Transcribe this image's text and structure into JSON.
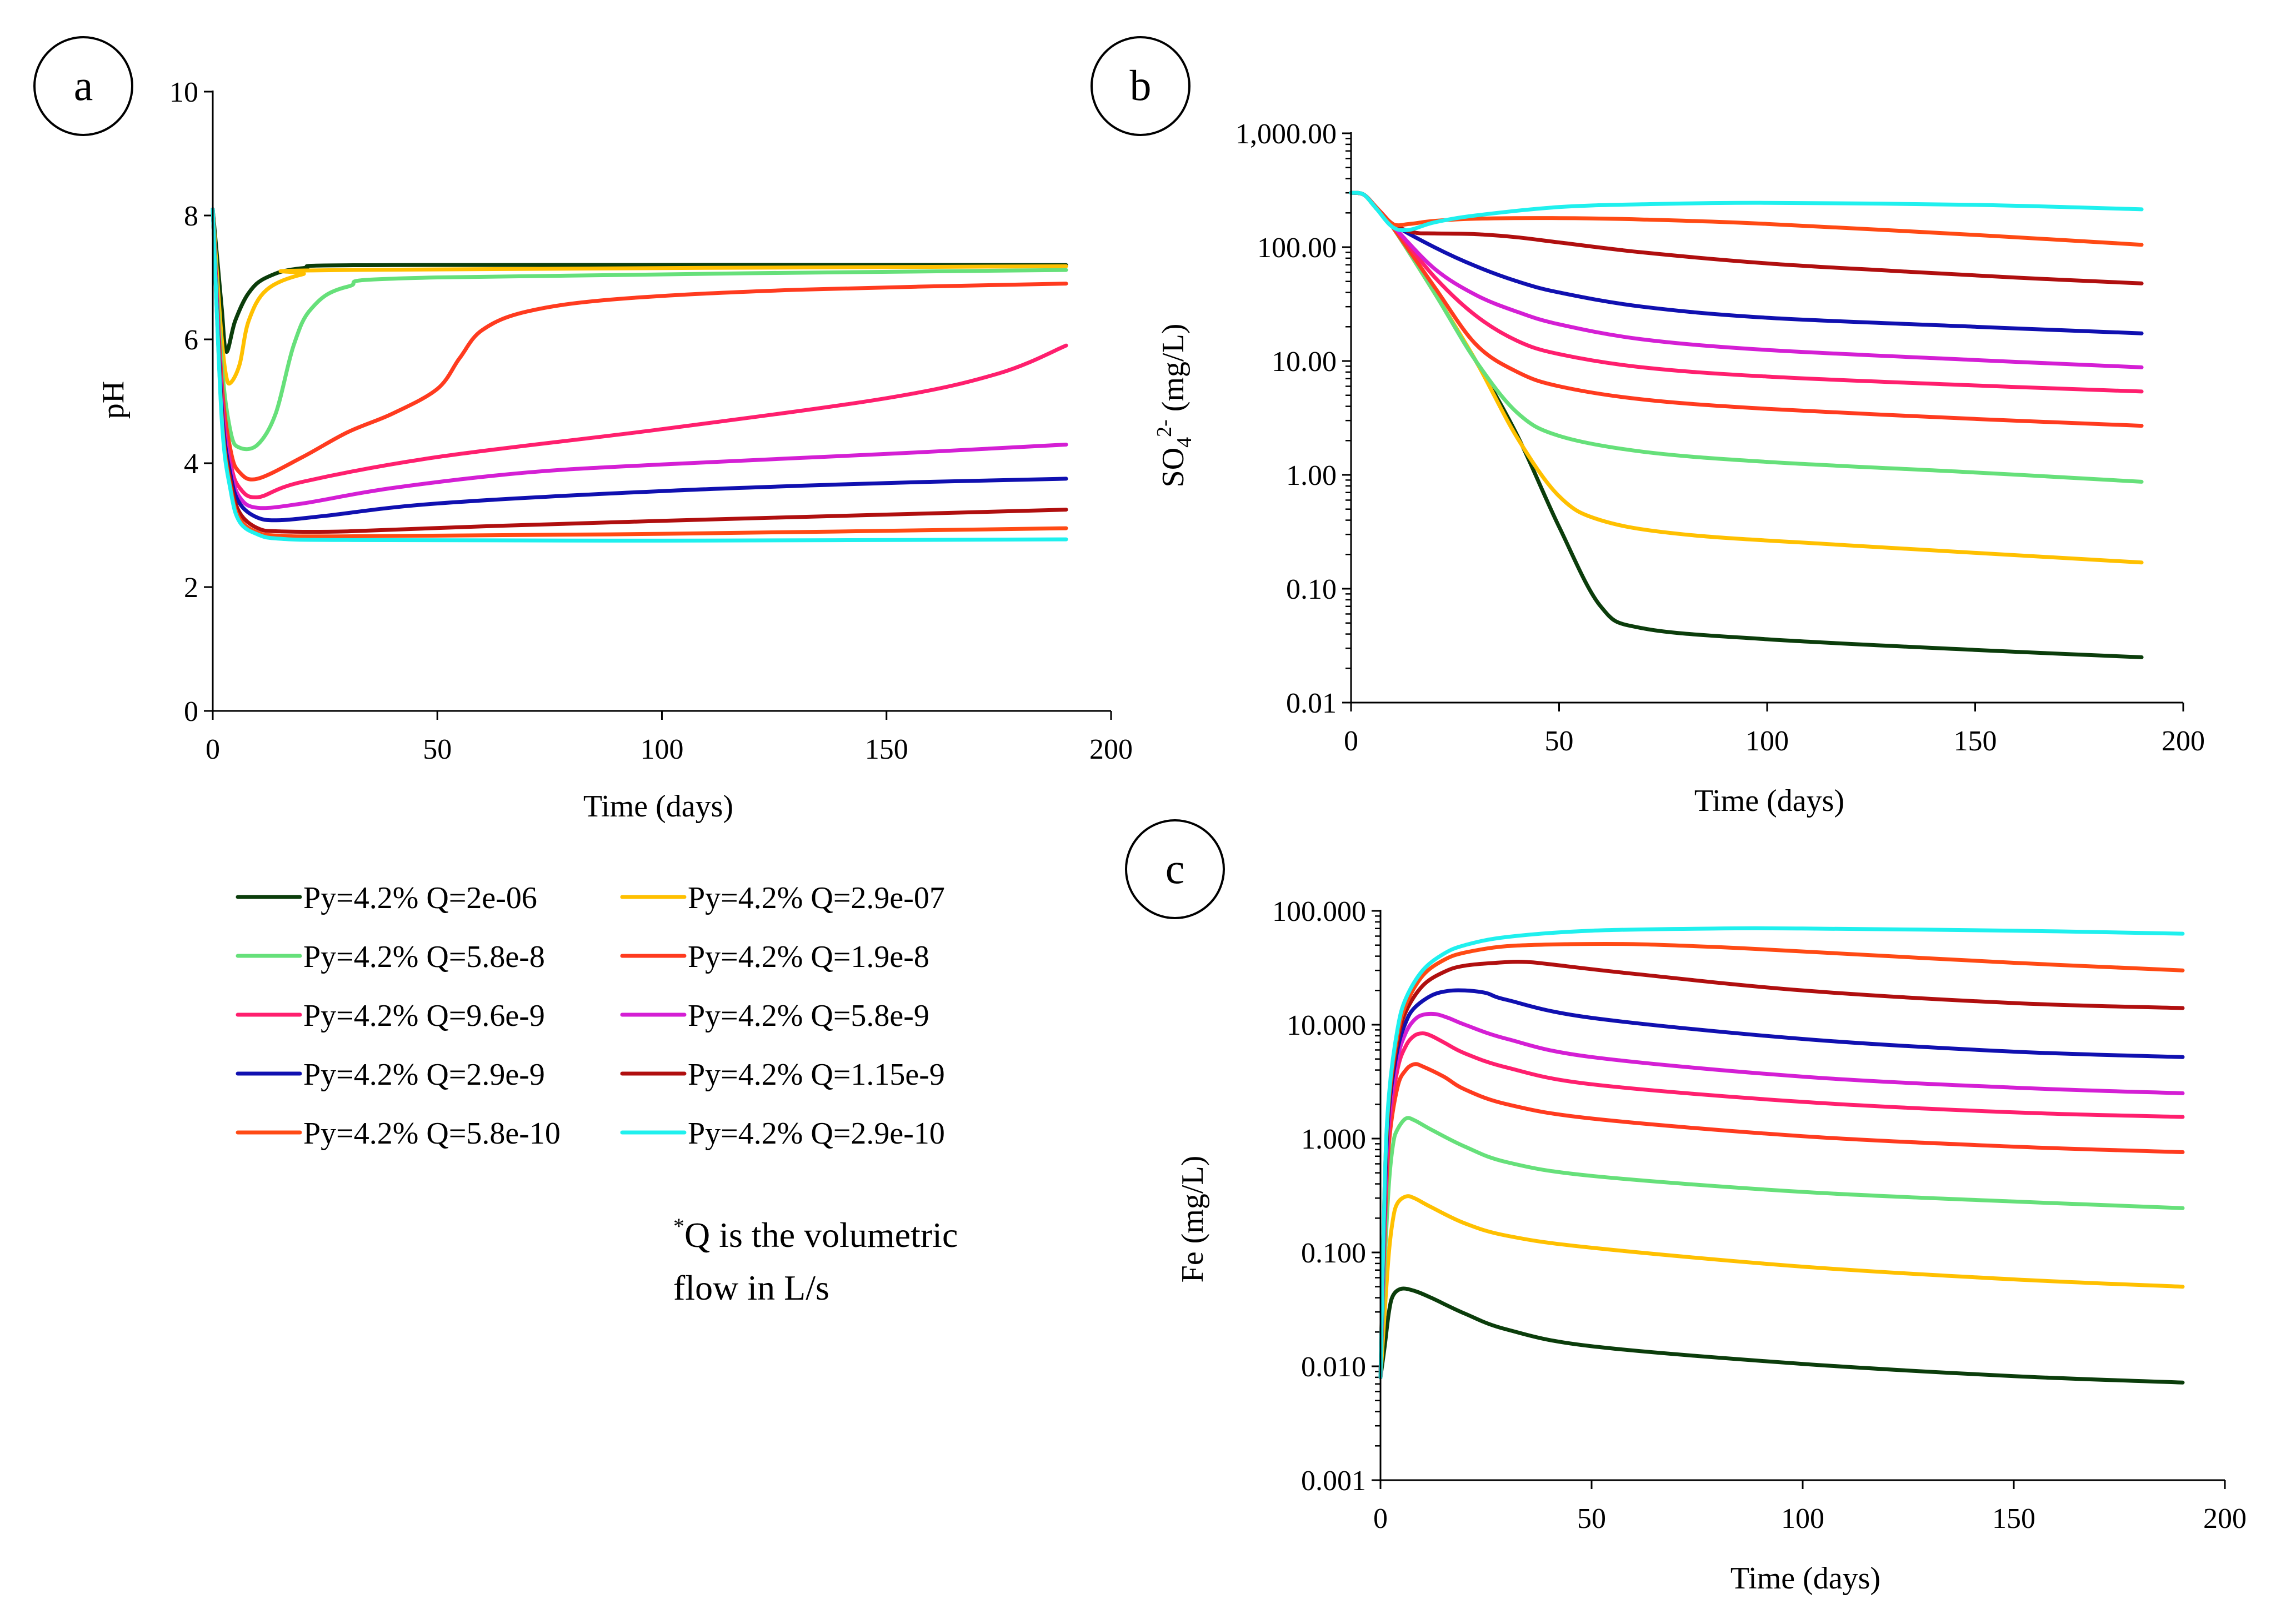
{
  "legend": {
    "note_sup": "*",
    "note_line1": "Q is the volumetric",
    "note_line2": "flow in L/s"
  },
  "series_styles": [
    {
      "name": "Py=4.2% Q=2e-06",
      "color": "#0b3d0b"
    },
    {
      "name": "Py=4.2% Q=2.9e-07",
      "color": "#ffc000"
    },
    {
      "name": "Py=4.2% Q=5.8e-8",
      "color": "#66e07a"
    },
    {
      "name": "Py=4.2% Q=1.9e-8",
      "color": "#ff3b1f"
    },
    {
      "name": "Py=4.2% Q=9.6e-9",
      "color": "#ff1f6e"
    },
    {
      "name": "Py=4.2% Q=5.8e-9",
      "color": "#d41fd4"
    },
    {
      "name": "Py=4.2% Q=2.9e-9",
      "color": "#1010b0"
    },
    {
      "name": "Py=4.2% Q=1.15e-9",
      "color": "#b00f0f"
    },
    {
      "name": "Py=4.2% Q=5.8e-10",
      "color": "#ff4a14"
    },
    {
      "name": "Py=4.2% Q=2.9e-10",
      "color": "#1ff0ee"
    }
  ],
  "chart_data": [
    {
      "panel": "a",
      "type": "line",
      "xlabel": "Time (days)",
      "ylabel": "pH",
      "yscale": "linear",
      "xlim": [
        0,
        200
      ],
      "ylim": [
        0,
        10
      ],
      "xticks": [
        0,
        50,
        100,
        150,
        200
      ],
      "xtick_labels": [
        "0",
        "50",
        "100",
        "150",
        "200"
      ],
      "yticks": [
        0,
        2,
        4,
        6,
        8,
        10
      ],
      "ytick_labels": [
        "0",
        "2",
        "4",
        "6",
        "8",
        "10"
      ],
      "series": [
        {
          "name": "Py=4.2% Q=2e-06",
          "x": [
            0,
            1,
            2,
            3,
            5,
            8,
            12,
            20,
            40,
            190
          ],
          "y": [
            8.1,
            7.3,
            6.5,
            5.8,
            6.3,
            6.75,
            7.0,
            7.15,
            7.2,
            7.2
          ]
        },
        {
          "name": "Py=4.2% Q=2.9e-07",
          "x": [
            0,
            1,
            2,
            3,
            4,
            6,
            8,
            12,
            20,
            30,
            190
          ],
          "y": [
            8.1,
            7.0,
            6.0,
            5.4,
            5.3,
            5.6,
            6.3,
            6.8,
            7.05,
            7.12,
            7.18
          ]
        },
        {
          "name": "Py=4.2% Q=5.8e-8",
          "x": [
            0,
            2,
            4,
            6,
            10,
            14,
            18,
            22,
            30,
            50,
            190
          ],
          "y": [
            8.1,
            5.6,
            4.5,
            4.25,
            4.3,
            4.8,
            5.9,
            6.5,
            6.85,
            7.0,
            7.12
          ]
        },
        {
          "name": "Py=4.2% Q=1.9e-8",
          "x": [
            0,
            2,
            4,
            6,
            10,
            20,
            30,
            40,
            50,
            55,
            60,
            70,
            90,
            130,
            190
          ],
          "y": [
            8.1,
            5.3,
            4.2,
            3.85,
            3.75,
            4.1,
            4.5,
            4.8,
            5.2,
            5.7,
            6.15,
            6.45,
            6.65,
            6.8,
            6.9
          ]
        },
        {
          "name": "Py=4.2% Q=9.6e-9",
          "x": [
            0,
            2,
            4,
            6,
            10,
            20,
            50,
            100,
            150,
            175,
            190
          ],
          "y": [
            8.1,
            5.1,
            4.0,
            3.6,
            3.45,
            3.7,
            4.1,
            4.55,
            5.05,
            5.45,
            5.9
          ]
        },
        {
          "name": "Py=4.2% Q=5.8e-9",
          "x": [
            0,
            2,
            4,
            6,
            10,
            20,
            40,
            70,
            100,
            150,
            190
          ],
          "y": [
            8.1,
            5.0,
            3.9,
            3.45,
            3.28,
            3.35,
            3.6,
            3.85,
            3.98,
            4.15,
            4.3
          ]
        },
        {
          "name": "Py=4.2% Q=2.9e-9",
          "x": [
            0,
            2,
            4,
            6,
            10,
            15,
            25,
            50,
            100,
            150,
            190
          ],
          "y": [
            8.1,
            4.9,
            3.8,
            3.35,
            3.12,
            3.08,
            3.15,
            3.35,
            3.55,
            3.68,
            3.75
          ]
        },
        {
          "name": "Py=4.2% Q=1.15e-9",
          "x": [
            0,
            2,
            4,
            6,
            10,
            15,
            30,
            60,
            100,
            150,
            190
          ],
          "y": [
            8.1,
            4.8,
            3.7,
            3.2,
            2.95,
            2.9,
            2.9,
            2.98,
            3.07,
            3.17,
            3.25
          ]
        },
        {
          "name": "Py=4.2% Q=5.8e-10",
          "x": [
            0,
            2,
            4,
            6,
            10,
            15,
            30,
            100,
            190
          ],
          "y": [
            8.1,
            4.75,
            3.6,
            3.1,
            2.88,
            2.83,
            2.82,
            2.86,
            2.95
          ]
        },
        {
          "name": "Py=4.2% Q=2.9e-10",
          "x": [
            0,
            2,
            4,
            6,
            10,
            15,
            30,
            100,
            190
          ],
          "y": [
            8.1,
            4.7,
            3.55,
            3.05,
            2.85,
            2.78,
            2.76,
            2.75,
            2.77
          ]
        }
      ]
    },
    {
      "panel": "b",
      "type": "line",
      "xlabel": "Time (days)",
      "ylabel_main": "SO",
      "ylabel_sub": "4",
      "ylabel_sup": "2-",
      "ylabel_rest": " (mg/L)",
      "yscale": "log",
      "xlim": [
        0,
        200
      ],
      "ylim": [
        0.01,
        1000
      ],
      "xticks": [
        0,
        50,
        100,
        150,
        200
      ],
      "xtick_labels": [
        "0",
        "50",
        "100",
        "150",
        "200"
      ],
      "yticks": [
        0.01,
        0.1,
        1,
        10,
        100,
        1000
      ],
      "ytick_labels": [
        "0.01",
        "0.10",
        "1.00",
        "10.00",
        "100.00",
        "1,000.00"
      ],
      "series": [
        {
          "name": "Py=4.2% Q=2e-06",
          "x": [
            0,
            3,
            6,
            10,
            20,
            30,
            40,
            50,
            60,
            70,
            100,
            150,
            190
          ],
          "y": [
            300,
            290,
            220,
            150,
            40,
            10,
            2.2,
            0.35,
            0.07,
            0.045,
            0.036,
            0.029,
            0.025
          ]
        },
        {
          "name": "Py=4.2% Q=2.9e-07",
          "x": [
            0,
            3,
            6,
            10,
            20,
            30,
            40,
            50,
            60,
            80,
            120,
            190
          ],
          "y": [
            300,
            290,
            220,
            150,
            40,
            10,
            2.1,
            0.65,
            0.4,
            0.3,
            0.24,
            0.17
          ]
        },
        {
          "name": "Py=4.2% Q=5.8e-8",
          "x": [
            0,
            3,
            6,
            10,
            20,
            30,
            40,
            50,
            70,
            100,
            150,
            190
          ],
          "y": [
            300,
            290,
            220,
            150,
            40,
            10,
            3.5,
            2.2,
            1.6,
            1.3,
            1.05,
            0.87
          ]
        },
        {
          "name": "Py=4.2% Q=1.9e-8",
          "x": [
            0,
            3,
            6,
            10,
            20,
            30,
            40,
            50,
            70,
            100,
            150,
            190
          ],
          "y": [
            300,
            290,
            225,
            150,
            45,
            14,
            8.0,
            6.0,
            4.6,
            3.8,
            3.1,
            2.7
          ]
        },
        {
          "name": "Py=4.2% Q=9.6e-9",
          "x": [
            0,
            3,
            6,
            10,
            20,
            30,
            40,
            50,
            70,
            100,
            150,
            190
          ],
          "y": [
            300,
            290,
            225,
            155,
            55,
            25,
            15.0,
            11.5,
            8.8,
            7.3,
            6.1,
            5.4
          ]
        },
        {
          "name": "Py=4.2% Q=5.8e-9",
          "x": [
            0,
            3,
            6,
            10,
            20,
            30,
            40,
            50,
            70,
            100,
            150,
            190
          ],
          "y": [
            300,
            290,
            225,
            155,
            65,
            38,
            27,
            21,
            15.5,
            12.5,
            10.2,
            8.8
          ]
        },
        {
          "name": "Py=4.2% Q=2.9e-9",
          "x": [
            0,
            3,
            6,
            10,
            20,
            30,
            40,
            50,
            70,
            100,
            150,
            190
          ],
          "y": [
            300,
            290,
            225,
            160,
            100,
            68,
            50,
            40,
            30,
            24,
            20,
            17.5
          ]
        },
        {
          "name": "Py=4.2% Q=1.15e-9",
          "x": [
            0,
            3,
            6,
            10,
            15,
            20,
            30,
            40,
            50,
            70,
            100,
            130,
            160,
            190
          ],
          "y": [
            300,
            290,
            225,
            160,
            135,
            132,
            130,
            122,
            110,
            90,
            72,
            62,
            54,
            48
          ]
        },
        {
          "name": "Py=4.2% Q=5.8e-10",
          "x": [
            0,
            3,
            6,
            10,
            14,
            20,
            30,
            50,
            70,
            100,
            150,
            190
          ],
          "y": [
            300,
            290,
            225,
            160,
            160,
            170,
            178,
            180,
            175,
            160,
            128,
            105
          ]
        },
        {
          "name": "Py=4.2% Q=2.9e-10",
          "x": [
            0,
            3,
            6,
            10,
            14,
            20,
            30,
            50,
            70,
            100,
            150,
            190
          ],
          "y": [
            300,
            290,
            220,
            150,
            142,
            165,
            190,
            225,
            238,
            245,
            235,
            215
          ]
        }
      ]
    },
    {
      "panel": "c",
      "type": "line",
      "xlabel": "Time (days)",
      "ylabel": "Fe (mg/L)",
      "yscale": "log",
      "xlim": [
        0,
        200
      ],
      "ylim": [
        0.001,
        100
      ],
      "xticks": [
        0,
        50,
        100,
        150,
        200
      ],
      "xtick_labels": [
        "0",
        "50",
        "100",
        "150",
        "200"
      ],
      "yticks": [
        0.001,
        0.01,
        0.1,
        1,
        10,
        100
      ],
      "ytick_labels": [
        "0.001",
        "0.010",
        "0.100",
        "1.000",
        "10.000",
        "100.000"
      ],
      "series": [
        {
          "name": "Py=4.2% Q=2e-06",
          "x": [
            0,
            1,
            2,
            3,
            5,
            8,
            12,
            20,
            30,
            50,
            100,
            150,
            190
          ],
          "y": [
            0.008,
            0.015,
            0.03,
            0.042,
            0.048,
            0.046,
            0.04,
            0.029,
            0.021,
            0.015,
            0.0105,
            0.0082,
            0.0072
          ]
        },
        {
          "name": "Py=4.2% Q=2.9e-07",
          "x": [
            0,
            1,
            2,
            3,
            4,
            6,
            8,
            12,
            20,
            30,
            50,
            100,
            150,
            190
          ],
          "y": [
            0.008,
            0.03,
            0.1,
            0.2,
            0.27,
            0.31,
            0.3,
            0.25,
            0.18,
            0.14,
            0.11,
            0.075,
            0.058,
            0.05
          ]
        },
        {
          "name": "Py=4.2% Q=5.8e-8",
          "x": [
            0,
            1,
            2,
            3,
            4,
            6,
            8,
            12,
            20,
            30,
            50,
            100,
            150,
            190
          ],
          "y": [
            0.008,
            0.08,
            0.4,
            0.9,
            1.2,
            1.5,
            1.45,
            1.2,
            0.85,
            0.62,
            0.47,
            0.34,
            0.28,
            0.245
          ]
        },
        {
          "name": "Py=4.2% Q=1.9e-8",
          "x": [
            0,
            1,
            2,
            4,
            6,
            8,
            10,
            15,
            20,
            30,
            50,
            100,
            150,
            190
          ],
          "y": [
            0.008,
            0.15,
            0.9,
            2.8,
            4.0,
            4.5,
            4.3,
            3.5,
            2.7,
            2.0,
            1.5,
            1.05,
            0.85,
            0.76
          ]
        },
        {
          "name": "Py=4.2% Q=9.6e-9",
          "x": [
            0,
            1,
            2,
            4,
            6,
            8,
            10,
            12,
            15,
            20,
            30,
            50,
            100,
            150,
            190
          ],
          "y": [
            0.008,
            0.2,
            1.2,
            4.0,
            6.5,
            8.0,
            8.4,
            8.0,
            7.0,
            5.6,
            4.2,
            3.0,
            2.1,
            1.7,
            1.55
          ]
        },
        {
          "name": "Py=4.2% Q=5.8e-9",
          "x": [
            0,
            1,
            2,
            4,
            6,
            8,
            10,
            13,
            16,
            20,
            30,
            50,
            100,
            150,
            190
          ],
          "y": [
            0.008,
            0.25,
            1.5,
            5.0,
            8.5,
            11.0,
            12.2,
            12.4,
            11.5,
            10.0,
            7.5,
            5.2,
            3.5,
            2.8,
            2.5
          ]
        },
        {
          "name": "Py=4.2% Q=2.9e-9",
          "x": [
            0,
            1,
            2,
            4,
            6,
            8,
            12,
            16,
            20,
            25,
            30,
            50,
            100,
            150,
            190
          ],
          "y": [
            0.008,
            0.3,
            1.8,
            6.0,
            10.5,
            14.0,
            18.0,
            19.8,
            20.0,
            19.0,
            16.5,
            11.5,
            7.5,
            5.8,
            5.2
          ]
        },
        {
          "name": "Py=4.2% Q=1.15e-9",
          "x": [
            0,
            1,
            2,
            4,
            6,
            10,
            15,
            20,
            30,
            35,
            40,
            60,
            100,
            150,
            190
          ],
          "y": [
            0.008,
            0.35,
            2.0,
            7.0,
            13.0,
            22.0,
            29.0,
            33.0,
            35.5,
            35.5,
            34.0,
            28.0,
            20.0,
            15.5,
            14.0
          ]
        },
        {
          "name": "Py=4.2% Q=5.8e-10",
          "x": [
            0,
            1,
            2,
            4,
            6,
            10,
            15,
            20,
            30,
            45,
            60,
            80,
            100,
            150,
            190
          ],
          "y": [
            0.008,
            0.4,
            2.2,
            8.0,
            15.0,
            27.0,
            37.0,
            43.0,
            49.0,
            51.0,
            51.0,
            48.0,
            44.0,
            35.0,
            30.0
          ]
        },
        {
          "name": "Py=4.2% Q=2.9e-10",
          "x": [
            0,
            1,
            2,
            4,
            6,
            10,
            15,
            20,
            30,
            50,
            80,
            100,
            150,
            190
          ],
          "y": [
            0.008,
            0.4,
            2.4,
            9.0,
            17.0,
            30.0,
            42.0,
            50.0,
            59.0,
            67.0,
            70.0,
            70.0,
            67.0,
            63.0
          ]
        }
      ]
    }
  ]
}
